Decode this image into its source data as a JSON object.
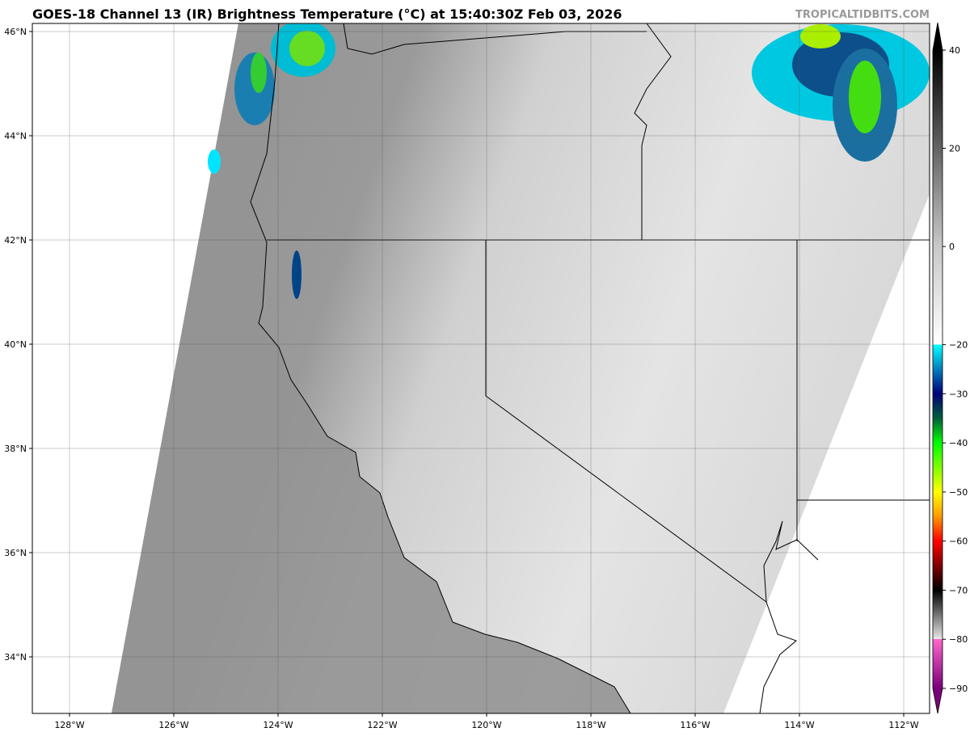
{
  "title": "GOES-18 Channel 13 (IR) Brightness Temperature (°C) at 15:40:30Z Feb 03, 2026",
  "credit": "TROPICALTIDBITS.COM",
  "map": {
    "lon_range": [
      -128.7,
      -111.5
    ],
    "lat_range": [
      32.9,
      46.2
    ],
    "lon_ticks": [
      "128°W",
      "126°W",
      "124°W",
      "122°W",
      "120°W",
      "118°W",
      "116°W",
      "114°W",
      "112°W"
    ],
    "lon_values": [
      -128,
      -126,
      -124,
      -122,
      -120,
      -118,
      -116,
      -114,
      -112
    ],
    "lat_ticks": [
      "34°N",
      "36°N",
      "38°N",
      "40°N",
      "42°N",
      "44°N",
      "46°N"
    ],
    "lat_values": [
      34,
      36,
      38,
      40,
      42,
      44,
      46
    ],
    "grid": true
  },
  "colorbar": {
    "ticks": [
      "40",
      "20",
      "0",
      "−20",
      "−30",
      "−40",
      "−50",
      "−60",
      "−70",
      "−80",
      "−90"
    ],
    "values": [
      40,
      20,
      0,
      -20,
      -30,
      -40,
      -50,
      -60,
      -70,
      -80,
      -90
    ],
    "range": [
      -90,
      40
    ],
    "colors": {
      "40": "#000000",
      "0": "#c8c8c8",
      "-20": "#ffffff",
      "-20b": "#00ffff",
      "-30": "#00007a",
      "-35": "#00603a",
      "-40": "#00ff00",
      "-50": "#ffff00",
      "-55": "#ff9900",
      "-60": "#ff0000",
      "-70": "#000000",
      "-80": "#e8e8e8",
      "-80b": "#ff66cc",
      "-90": "#7a007a"
    }
  }
}
